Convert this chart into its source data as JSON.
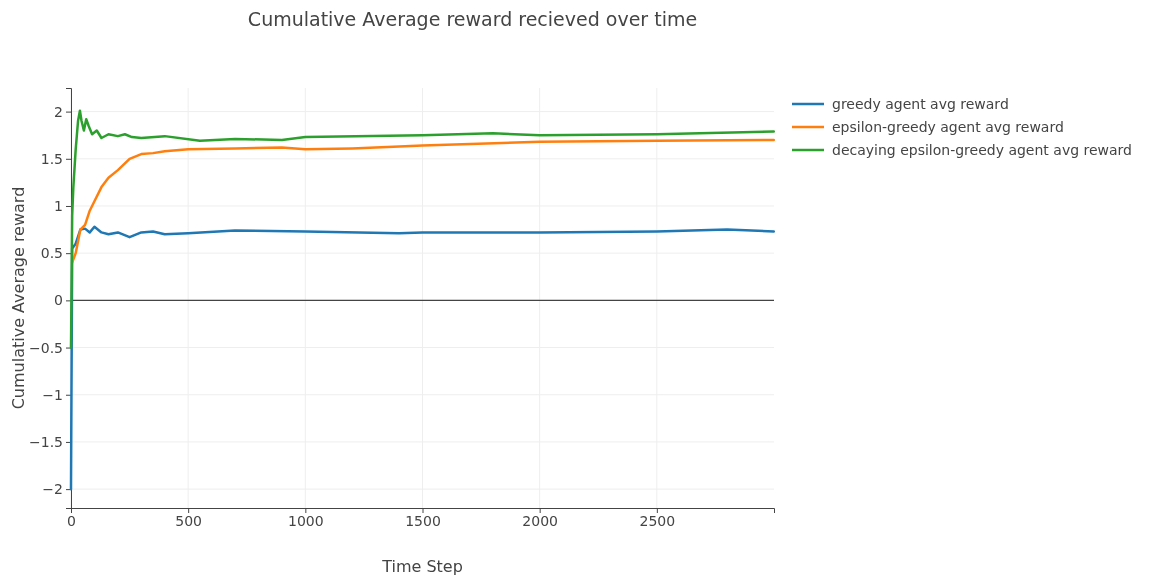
{
  "chart_data": {
    "type": "line",
    "title": "Cumulative Average reward recieved over time",
    "xlabel": "Time Step",
    "ylabel": "Cumulative Average reward",
    "xlim": [
      0,
      3000
    ],
    "xticks": [
      0,
      500,
      1000,
      1500,
      2000,
      2500
    ],
    "ylim": [
      -2.2,
      2.25
    ],
    "yticks": [
      {
        "value": -2,
        "label": "−2"
      },
      {
        "value": -1.5,
        "label": "−1.5"
      },
      {
        "value": -1,
        "label": "−1"
      },
      {
        "value": -0.5,
        "label": "−0.5"
      },
      0,
      0.5,
      1,
      1.5,
      2
    ],
    "grid": true,
    "legend": "top right",
    "ref_lines": [
      {
        "axis": "y",
        "value": 0,
        "color": "#444444"
      }
    ],
    "series": [
      {
        "name": "greedy agent avg reward",
        "color": "#1f77b4",
        "x": [
          0,
          5,
          20,
          40,
          60,
          80,
          100,
          130,
          160,
          200,
          250,
          300,
          350,
          400,
          500,
          700,
          1000,
          1400,
          1500,
          2000,
          2500,
          2800,
          2999
        ],
        "values": [
          -2,
          0.55,
          0.6,
          0.75,
          0.76,
          0.72,
          0.78,
          0.72,
          0.7,
          0.72,
          0.67,
          0.72,
          0.73,
          0.7,
          0.71,
          0.74,
          0.73,
          0.71,
          0.72,
          0.72,
          0.73,
          0.75,
          0.73
        ]
      },
      {
        "name": "epsilon-greedy agent avg reward",
        "color": "#ff7f0e",
        "x": [
          5,
          20,
          40,
          60,
          80,
          100,
          130,
          160,
          200,
          250,
          300,
          350,
          400,
          500,
          700,
          900,
          1000,
          1200,
          1500,
          2000,
          2500,
          2999
        ],
        "values": [
          0.4,
          0.5,
          0.75,
          0.8,
          0.95,
          1.05,
          1.2,
          1.3,
          1.38,
          1.5,
          1.55,
          1.56,
          1.58,
          1.6,
          1.61,
          1.62,
          1.6,
          1.61,
          1.64,
          1.68,
          1.69,
          1.7
        ]
      },
      {
        "name": "decaying epsilon-greedy agent avg reward",
        "color": "#2ca02c",
        "x": [
          0,
          5,
          10,
          20,
          30,
          38,
          45,
          55,
          65,
          75,
          90,
          110,
          130,
          160,
          200,
          230,
          260,
          300,
          400,
          550,
          700,
          900,
          1000,
          1500,
          1800,
          2000,
          2500,
          2999
        ],
        "values": [
          -0.5,
          0.9,
          1.2,
          1.6,
          1.9,
          2.01,
          1.9,
          1.8,
          1.92,
          1.85,
          1.76,
          1.8,
          1.72,
          1.76,
          1.74,
          1.76,
          1.73,
          1.72,
          1.74,
          1.69,
          1.71,
          1.7,
          1.73,
          1.75,
          1.77,
          1.75,
          1.76,
          1.79
        ]
      }
    ]
  }
}
